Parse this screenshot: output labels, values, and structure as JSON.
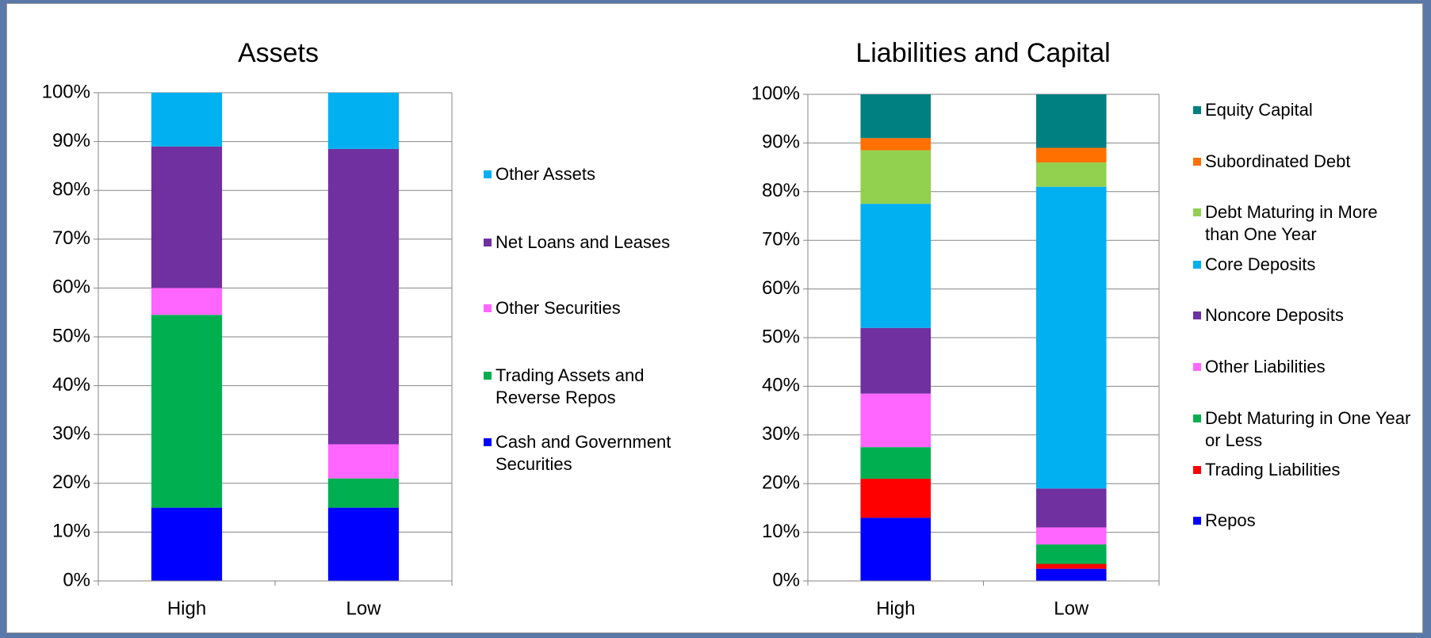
{
  "chart_data": [
    {
      "type": "bar",
      "stacked": true,
      "title": "Assets",
      "categories": [
        "High",
        "Low"
      ],
      "ylim": [
        0,
        100
      ],
      "yticks": [
        {
          "value": 0,
          "label": "0%"
        },
        {
          "value": 10,
          "label": "10%"
        },
        {
          "value": 20,
          "label": "20%"
        },
        {
          "value": 30,
          "label": "30%"
        },
        {
          "value": 40,
          "label": "40%"
        },
        {
          "value": 50,
          "label": "50%"
        },
        {
          "value": 60,
          "label": "60%"
        },
        {
          "value": 70,
          "label": "70%"
        },
        {
          "value": 80,
          "label": "80%"
        },
        {
          "value": 90,
          "label": "90%"
        },
        {
          "value": 100,
          "label": "100%"
        }
      ],
      "grid": true,
      "series": [
        {
          "name": "Cash and Government Securities",
          "color": "#0000ff",
          "values": [
            15,
            15
          ]
        },
        {
          "name": "Trading Assets and Reverse Repos",
          "color": "#00b050",
          "values": [
            39.5,
            6
          ]
        },
        {
          "name": "Other Securities",
          "color": "#ff66ff",
          "values": [
            5.5,
            7
          ]
        },
        {
          "name": "Net Loans and Leases",
          "color": "#7030a0",
          "values": [
            29,
            60.5
          ]
        },
        {
          "name": "Other Assets",
          "color": "#00b0f0",
          "values": [
            11,
            11.5
          ]
        }
      ]
    },
    {
      "type": "bar",
      "stacked": true,
      "title": "Liabilities and Capital",
      "categories": [
        "High",
        "Low"
      ],
      "ylim": [
        0,
        100
      ],
      "yticks": [
        {
          "value": 0,
          "label": "0%"
        },
        {
          "value": 10,
          "label": "10%"
        },
        {
          "value": 20,
          "label": "20%"
        },
        {
          "value": 30,
          "label": "30%"
        },
        {
          "value": 40,
          "label": "40%"
        },
        {
          "value": 50,
          "label": "50%"
        },
        {
          "value": 60,
          "label": "60%"
        },
        {
          "value": 70,
          "label": "70%"
        },
        {
          "value": 80,
          "label": "80%"
        },
        {
          "value": 90,
          "label": "90%"
        },
        {
          "value": 100,
          "label": "100%"
        }
      ],
      "grid": true,
      "series": [
        {
          "name": "Repos",
          "color": "#0000ff",
          "values": [
            13,
            2.5
          ]
        },
        {
          "name": "Trading Liabilities",
          "color": "#ff0000",
          "values": [
            8,
            1
          ]
        },
        {
          "name": "Debt Maturing in One Year or Less",
          "color": "#00b050",
          "values": [
            6.5,
            4
          ]
        },
        {
          "name": "Other Liabilities",
          "color": "#ff66ff",
          "values": [
            11,
            3.5
          ]
        },
        {
          "name": "Noncore Deposits",
          "color": "#7030a0",
          "values": [
            13.5,
            8
          ]
        },
        {
          "name": "Core Deposits",
          "color": "#00b0f0",
          "values": [
            25.5,
            62
          ]
        },
        {
          "name": "Debt Maturing in More than One Year",
          "color": "#92d050",
          "values": [
            11,
            5
          ]
        },
        {
          "name": "Subordinated Debt",
          "color": "#ff7000",
          "values": [
            2.5,
            3
          ]
        },
        {
          "name": "Equity Capital",
          "color": "#008080",
          "values": [
            9,
            11
          ]
        }
      ]
    }
  ]
}
